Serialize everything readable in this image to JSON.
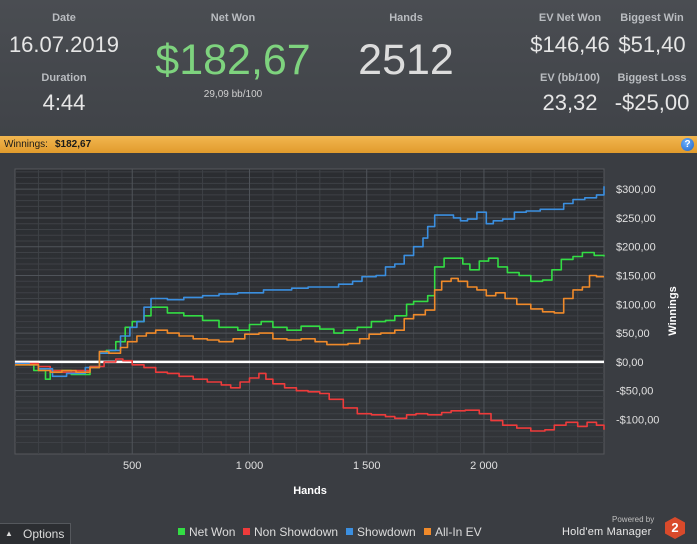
{
  "summary": {
    "date_label": "Date",
    "date_value": "16.07.2019",
    "duration_label": "Duration",
    "duration_value": "4:44",
    "net_won_label": "Net Won",
    "net_won_value": "$182,67",
    "bb_per_100": "29,09 bb/100",
    "hands_label": "Hands",
    "hands_value": "2512",
    "ev_net_won_label": "EV Net Won",
    "ev_net_won_value": "$146,46",
    "biggest_win_label": "Biggest Win",
    "biggest_win_value": "$51,40",
    "ev_bb100_label": "EV (bb/100)",
    "ev_bb100_value": "23,32",
    "biggest_loss_label": "Biggest Loss",
    "biggest_loss_value": "-$25,00"
  },
  "winnings_bar": {
    "label": "Winnings:",
    "value": "$182,67",
    "help_icon": "help-icon"
  },
  "footer": {
    "options_label": "Options",
    "powered_by": "Powered by",
    "brand": "Hold'em Manager",
    "brand_badge": "2"
  },
  "colors": {
    "net_won": "#33dd44",
    "non_showdown": "#ee3b3b",
    "showdown": "#3b8fe0",
    "allin_ev": "#f08a2a",
    "zero_line": "#ffffff"
  },
  "chart_data": {
    "type": "line",
    "xlabel": "Hands",
    "ylabel": "Winnings",
    "x_tick_labels": [
      "500",
      "1 000",
      "1 500",
      "2 000"
    ],
    "x_ticks": [
      500,
      1000,
      1500,
      2000
    ],
    "y_tick_labels": [
      "$300,00",
      "$250,00",
      "$200,00",
      "$150,00",
      "$100,00",
      "$50,00",
      "$0,00",
      "-$50,00",
      "-$100,00"
    ],
    "y_ticks": [
      300,
      250,
      200,
      150,
      100,
      50,
      0,
      -50,
      -100
    ],
    "xlim": [
      0,
      2512
    ],
    "ylim": [
      -160,
      335
    ],
    "grid": true,
    "legend_position": "bottom",
    "series": [
      {
        "name": "Net Won",
        "color": "#33dd44",
        "points": [
          [
            0,
            -5
          ],
          [
            60,
            -5
          ],
          [
            80,
            -15
          ],
          [
            130,
            -30
          ],
          [
            150,
            -15
          ],
          [
            240,
            -22
          ],
          [
            320,
            -8
          ],
          [
            360,
            15
          ],
          [
            390,
            20
          ],
          [
            430,
            35
          ],
          [
            470,
            60
          ],
          [
            500,
            70
          ],
          [
            550,
            80
          ],
          [
            580,
            95
          ],
          [
            650,
            85
          ],
          [
            720,
            80
          ],
          [
            800,
            72
          ],
          [
            870,
            60
          ],
          [
            950,
            55
          ],
          [
            1000,
            65
          ],
          [
            1050,
            70
          ],
          [
            1100,
            60
          ],
          [
            1160,
            55
          ],
          [
            1220,
            62
          ],
          [
            1300,
            57
          ],
          [
            1360,
            50
          ],
          [
            1400,
            55
          ],
          [
            1460,
            60
          ],
          [
            1520,
            70
          ],
          [
            1580,
            72
          ],
          [
            1620,
            80
          ],
          [
            1670,
            100
          ],
          [
            1700,
            105
          ],
          [
            1760,
            115
          ],
          [
            1790,
            165
          ],
          [
            1830,
            180
          ],
          [
            1870,
            180
          ],
          [
            1910,
            170
          ],
          [
            1940,
            160
          ],
          [
            1980,
            175
          ],
          [
            2020,
            180
          ],
          [
            2060,
            165
          ],
          [
            2100,
            155
          ],
          [
            2150,
            150
          ],
          [
            2200,
            140
          ],
          [
            2250,
            142
          ],
          [
            2290,
            160
          ],
          [
            2330,
            178
          ],
          [
            2380,
            183
          ],
          [
            2420,
            190
          ],
          [
            2470,
            185
          ],
          [
            2512,
            183
          ]
        ]
      },
      {
        "name": "Non Showdown",
        "color": "#ee3b3b",
        "points": [
          [
            0,
            -3
          ],
          [
            60,
            -3
          ],
          [
            100,
            -8
          ],
          [
            150,
            -15
          ],
          [
            200,
            -18
          ],
          [
            260,
            -15
          ],
          [
            320,
            -8
          ],
          [
            380,
            0
          ],
          [
            430,
            5
          ],
          [
            460,
            2
          ],
          [
            500,
            -5
          ],
          [
            550,
            -10
          ],
          [
            600,
            -18
          ],
          [
            650,
            -20
          ],
          [
            700,
            -25
          ],
          [
            760,
            -30
          ],
          [
            820,
            -35
          ],
          [
            880,
            -40
          ],
          [
            920,
            -45
          ],
          [
            960,
            -35
          ],
          [
            1000,
            -28
          ],
          [
            1040,
            -20
          ],
          [
            1070,
            -30
          ],
          [
            1100,
            -38
          ],
          [
            1150,
            -45
          ],
          [
            1200,
            -50
          ],
          [
            1250,
            -52
          ],
          [
            1300,
            -55
          ],
          [
            1340,
            -65
          ],
          [
            1400,
            -80
          ],
          [
            1460,
            -90
          ],
          [
            1520,
            -92
          ],
          [
            1580,
            -95
          ],
          [
            1620,
            -98
          ],
          [
            1670,
            -92
          ],
          [
            1710,
            -90
          ],
          [
            1760,
            -92
          ],
          [
            1820,
            -88
          ],
          [
            1860,
            -85
          ],
          [
            1920,
            -84
          ],
          [
            1980,
            -90
          ],
          [
            2030,
            -102
          ],
          [
            2080,
            -110
          ],
          [
            2140,
            -115
          ],
          [
            2200,
            -120
          ],
          [
            2260,
            -118
          ],
          [
            2300,
            -110
          ],
          [
            2350,
            -105
          ],
          [
            2400,
            -112
          ],
          [
            2440,
            -105
          ],
          [
            2480,
            -110
          ],
          [
            2512,
            -118
          ]
        ]
      },
      {
        "name": "Showdown",
        "color": "#3b8fe0",
        "points": [
          [
            0,
            -3
          ],
          [
            60,
            -5
          ],
          [
            100,
            -12
          ],
          [
            160,
            -25
          ],
          [
            220,
            -20
          ],
          [
            300,
            -10
          ],
          [
            360,
            15
          ],
          [
            400,
            20
          ],
          [
            450,
            45
          ],
          [
            490,
            60
          ],
          [
            520,
            70
          ],
          [
            550,
            95
          ],
          [
            580,
            110
          ],
          [
            650,
            108
          ],
          [
            720,
            112
          ],
          [
            800,
            115
          ],
          [
            870,
            118
          ],
          [
            950,
            120
          ],
          [
            1000,
            120
          ],
          [
            1060,
            125
          ],
          [
            1120,
            125
          ],
          [
            1180,
            128
          ],
          [
            1250,
            130
          ],
          [
            1320,
            130
          ],
          [
            1380,
            135
          ],
          [
            1440,
            140
          ],
          [
            1480,
            148
          ],
          [
            1540,
            150
          ],
          [
            1580,
            165
          ],
          [
            1620,
            170
          ],
          [
            1660,
            185
          ],
          [
            1700,
            200
          ],
          [
            1740,
            215
          ],
          [
            1760,
            235
          ],
          [
            1790,
            255
          ],
          [
            1840,
            255
          ],
          [
            1870,
            250
          ],
          [
            1900,
            245
          ],
          [
            1930,
            248
          ],
          [
            1970,
            260
          ],
          [
            2010,
            240
          ],
          [
            2040,
            245
          ],
          [
            2080,
            248
          ],
          [
            2130,
            260
          ],
          [
            2180,
            262
          ],
          [
            2240,
            265
          ],
          [
            2300,
            265
          ],
          [
            2340,
            275
          ],
          [
            2380,
            282
          ],
          [
            2430,
            285
          ],
          [
            2480,
            290
          ],
          [
            2512,
            305
          ]
        ]
      },
      {
        "name": "All-In EV",
        "color": "#f08a2a",
        "points": [
          [
            0,
            -5
          ],
          [
            60,
            -5
          ],
          [
            100,
            -15
          ],
          [
            150,
            -18
          ],
          [
            200,
            -15
          ],
          [
            260,
            -18
          ],
          [
            320,
            -10
          ],
          [
            360,
            18
          ],
          [
            400,
            15
          ],
          [
            450,
            25
          ],
          [
            480,
            35
          ],
          [
            520,
            45
          ],
          [
            560,
            50
          ],
          [
            600,
            55
          ],
          [
            650,
            50
          ],
          [
            700,
            45
          ],
          [
            760,
            40
          ],
          [
            820,
            38
          ],
          [
            870,
            35
          ],
          [
            930,
            40
          ],
          [
            980,
            48
          ],
          [
            1040,
            50
          ],
          [
            1100,
            40
          ],
          [
            1160,
            38
          ],
          [
            1220,
            40
          ],
          [
            1280,
            35
          ],
          [
            1330,
            30
          ],
          [
            1370,
            30
          ],
          [
            1420,
            32
          ],
          [
            1470,
            40
          ],
          [
            1510,
            48
          ],
          [
            1560,
            50
          ],
          [
            1620,
            55
          ],
          [
            1660,
            75
          ],
          [
            1700,
            82
          ],
          [
            1750,
            90
          ],
          [
            1790,
            125
          ],
          [
            1820,
            140
          ],
          [
            1860,
            145
          ],
          [
            1890,
            140
          ],
          [
            1930,
            130
          ],
          [
            1970,
            125
          ],
          [
            2010,
            115
          ],
          [
            2050,
            120
          ],
          [
            2090,
            110
          ],
          [
            2140,
            100
          ],
          [
            2200,
            92
          ],
          [
            2250,
            87
          ],
          [
            2300,
            85
          ],
          [
            2340,
            110
          ],
          [
            2380,
            125
          ],
          [
            2420,
            130
          ],
          [
            2450,
            150
          ],
          [
            2480,
            148
          ],
          [
            2512,
            148
          ]
        ]
      }
    ]
  }
}
